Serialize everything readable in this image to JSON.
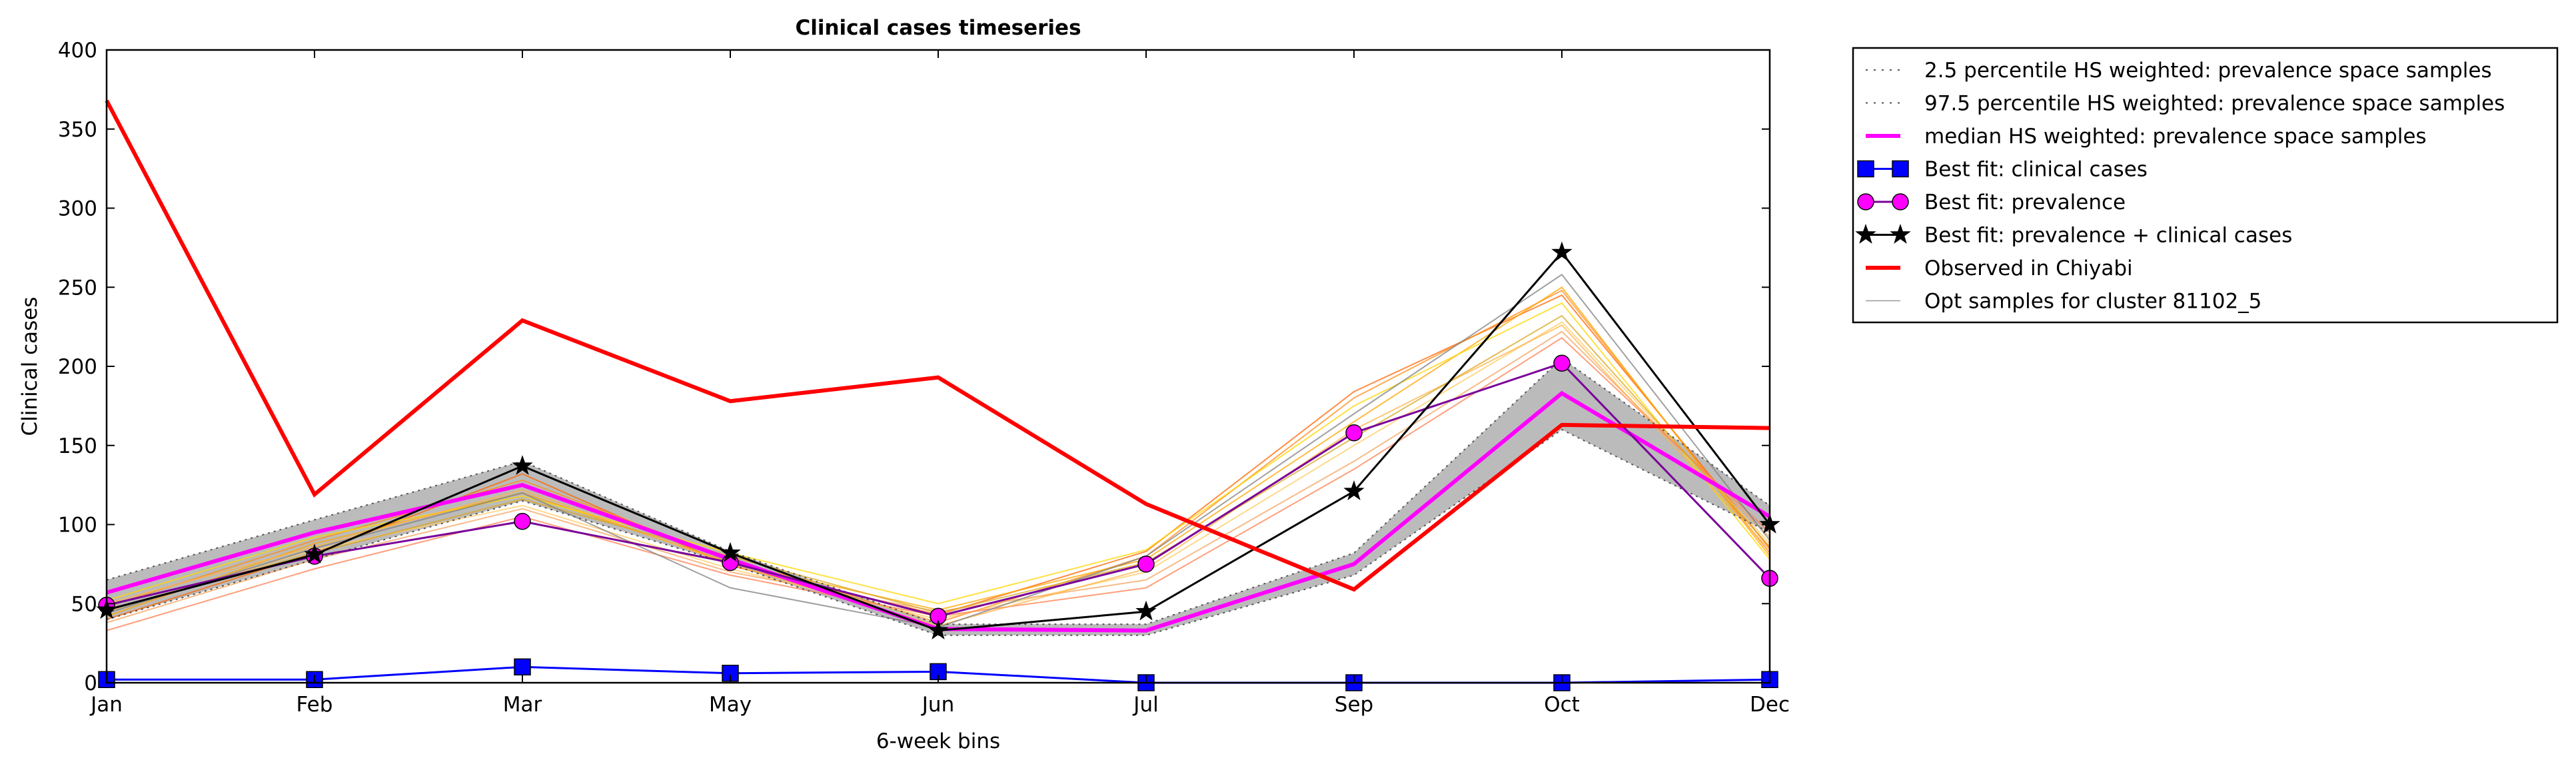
{
  "chart_data": {
    "type": "line",
    "title": "Clinical cases timeseries",
    "xlabel": "6-week bins",
    "ylabel": "Clinical cases",
    "categories": [
      "Jan",
      "Feb",
      "Mar",
      "May",
      "Jun",
      "Jul",
      "Sep",
      "Oct",
      "Dec"
    ],
    "ylim": [
      0,
      400
    ],
    "yticks": [
      0,
      50,
      100,
      150,
      200,
      250,
      300,
      350,
      400
    ],
    "grid": false,
    "legend_position": "outside-right",
    "percentile_band": {
      "lower": [
        40,
        78,
        115,
        75,
        30,
        30,
        68,
        160,
        95
      ],
      "upper": [
        65,
        103,
        140,
        83,
        37,
        37,
        82,
        205,
        112
      ],
      "color": "#bbbbbb"
    },
    "series": [
      {
        "name": "2.5 percentile HS weighted: prevalence space samples",
        "style": "dotted",
        "color": "#555555",
        "marker": "none",
        "values": [
          40,
          78,
          115,
          75,
          30,
          30,
          68,
          160,
          95
        ]
      },
      {
        "name": "97.5 percentile HS weighted: prevalence space samples",
        "style": "dotted",
        "color": "#555555",
        "marker": "none",
        "values": [
          65,
          103,
          140,
          83,
          37,
          37,
          82,
          205,
          112
        ]
      },
      {
        "name": "median HS weighted: prevalence space samples",
        "style": "solid",
        "color": "#ff00ff",
        "marker": "none",
        "values": [
          57,
          95,
          125,
          78,
          34,
          33,
          75,
          183,
          105
        ]
      },
      {
        "name": "Best fit: clinical cases",
        "style": "solid",
        "color": "#0000ff",
        "marker": "square",
        "values": [
          2,
          2,
          10,
          6,
          7,
          0,
          0,
          0,
          2
        ]
      },
      {
        "name": "Best fit: prevalence",
        "style": "solid",
        "color": "#7a0099",
        "marker": "circle",
        "marker_color": "#ff00ff",
        "values": [
          49,
          80,
          102,
          76,
          42,
          75,
          158,
          202,
          66
        ]
      },
      {
        "name": "Best fit: prevalence + clinical cases",
        "style": "solid",
        "color": "#000000",
        "marker": "star",
        "values": [
          46,
          81,
          137,
          82,
          33,
          45,
          121,
          272,
          100
        ]
      },
      {
        "name": "Observed in Chiyabi",
        "style": "solid",
        "color": "#ff0000",
        "marker": "none",
        "values": [
          368,
          119,
          229,
          178,
          193,
          113,
          59,
          163,
          161
        ]
      },
      {
        "name": "Opt samples for cluster 81102_5",
        "style": "solid",
        "color": "#999999",
        "marker": "none",
        "values": [
          44,
          85,
          120,
          60,
          35,
          80,
          170,
          235,
          90
        ]
      }
    ],
    "opt_samples": [
      {
        "color": "#ff6600",
        "values": [
          40,
          82,
          132,
          74,
          43,
          83,
          184,
          245,
          85
        ]
      },
      {
        "color": "#ff8c1a",
        "values": [
          48,
          90,
          128,
          78,
          38,
          80,
          180,
          248,
          82
        ]
      },
      {
        "color": "#ffa500",
        "values": [
          42,
          88,
          120,
          76,
          46,
          78,
          165,
          250,
          80
        ]
      },
      {
        "color": "#ffd700",
        "values": [
          52,
          92,
          118,
          82,
          50,
          84,
          175,
          240,
          78
        ]
      },
      {
        "color": "#ffcc66",
        "values": [
          45,
          84,
          112,
          72,
          40,
          70,
          150,
          228,
          88
        ]
      },
      {
        "color": "#f4a460",
        "values": [
          38,
          78,
          110,
          70,
          45,
          65,
          140,
          222,
          92
        ]
      },
      {
        "color": "#ff7f50",
        "values": [
          33,
          72,
          105,
          68,
          42,
          60,
          135,
          218,
          95
        ]
      },
      {
        "color": "#ffb347",
        "values": [
          50,
          86,
          122,
          75,
          36,
          72,
          160,
          226,
          84
        ]
      },
      {
        "color": "#daa520",
        "values": [
          46,
          82,
          116,
          80,
          44,
          76,
          155,
          232,
          86
        ]
      },
      {
        "color": "#808080",
        "values": [
          44,
          85,
          120,
          60,
          35,
          80,
          170,
          258,
          90
        ]
      }
    ]
  }
}
